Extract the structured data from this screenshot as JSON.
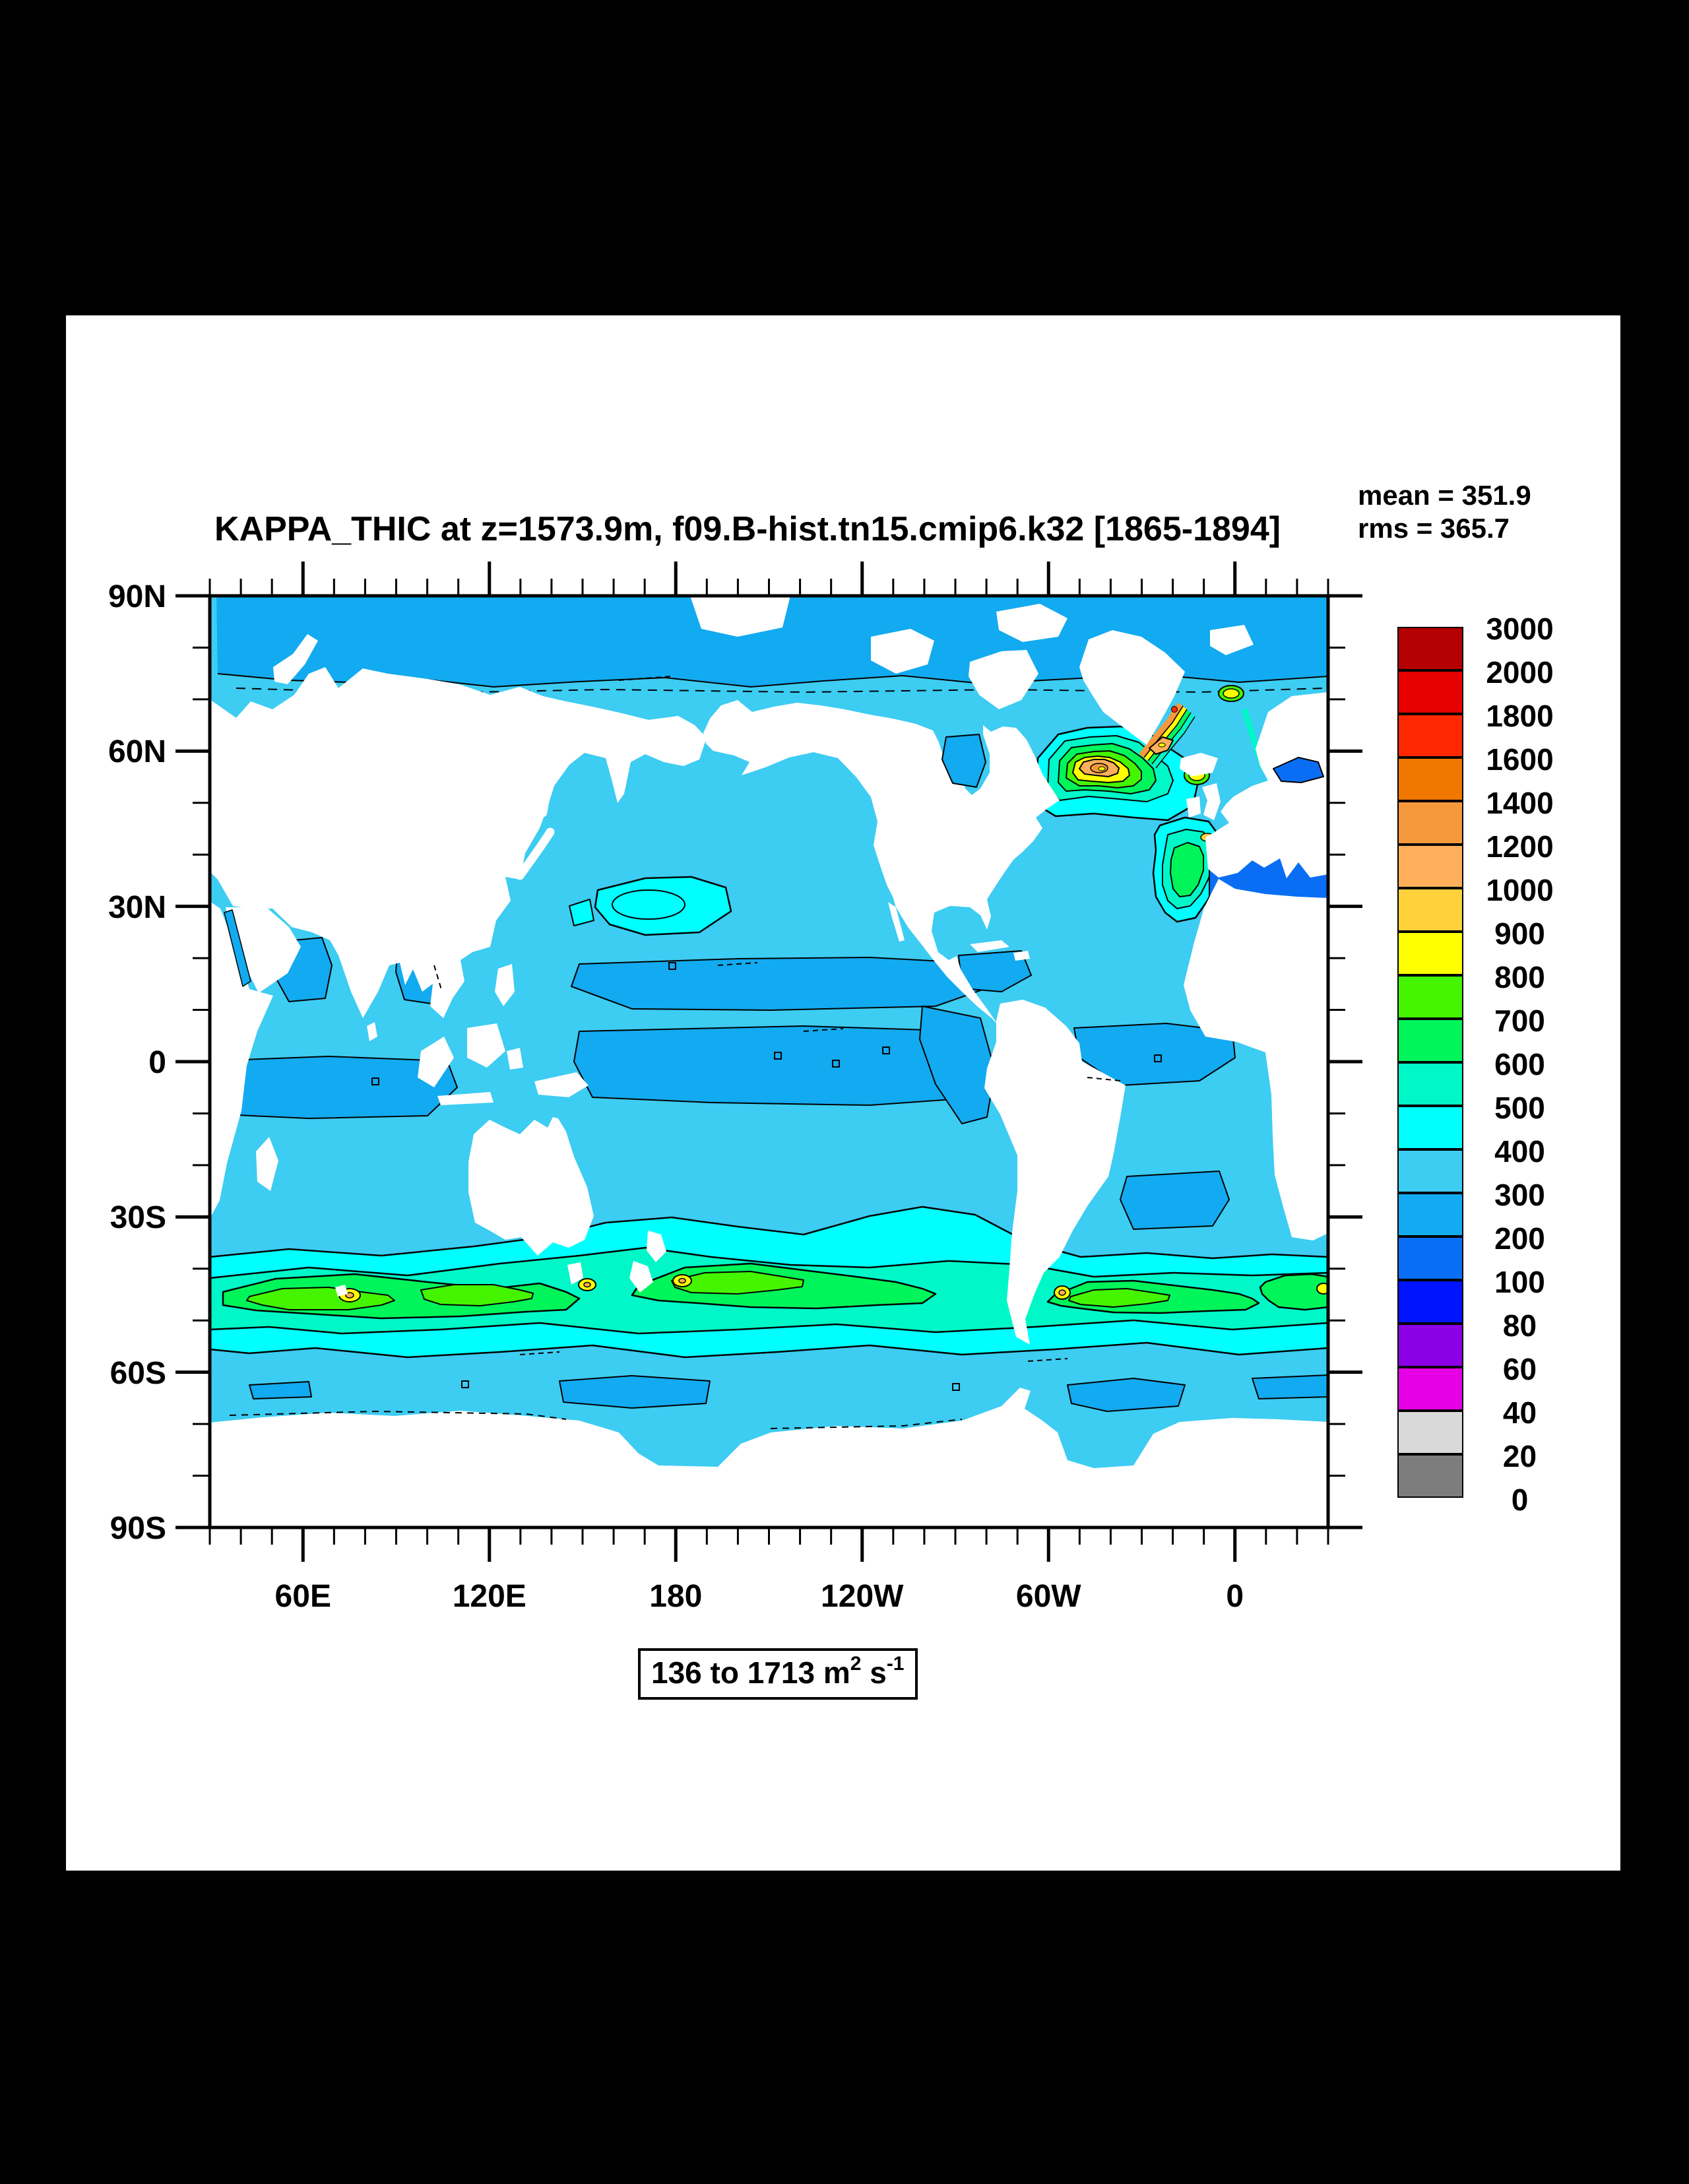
{
  "header": {
    "title": "KAPPA_THIC at z=1573.9m, f09.B-hist.tn15.cmip6.k32 [1865-1894]",
    "mean_label": "mean = 351.9",
    "rms_label": "rms = 365.7"
  },
  "axes": {
    "x_tick_labels": [
      "60E",
      "120E",
      "180",
      "120W",
      "60W",
      "0"
    ],
    "y_tick_labels": [
      "90N",
      "60N",
      "30N",
      "0",
      "30S",
      "60S",
      "90S"
    ]
  },
  "colorbar": {
    "tick_labels": [
      "3000",
      "2000",
      "1800",
      "1600",
      "1400",
      "1200",
      "1000",
      "900",
      "800",
      "700",
      "600",
      "500",
      "400",
      "300",
      "200",
      "100",
      "80",
      "60",
      "40",
      "20",
      "0"
    ],
    "box_colors": [
      "#B40000",
      "#E60000",
      "#FF2800",
      "#F07800",
      "#F5993C",
      "#FFAF5A",
      "#FFD23C",
      "#FFFF00",
      "#45F500",
      "#00F55A",
      "#00F7C8",
      "#00FFFF",
      "#3DCCF2",
      "#12AAF0",
      "#0A6EF5",
      "#0014FF",
      "#8C00E6",
      "#E600E6",
      "#D9D9D9",
      "#7D7D7D"
    ]
  },
  "range_annotation": {
    "text_main": "136 to 1713 m",
    "sup_1": "2",
    "text_mid": " s",
    "sup_2": "-1"
  },
  "chart_data": {
    "type": "heatmap",
    "subtype": "filled-contour world map (lat-lon)",
    "title": "KAPPA_THIC at z=1573.9m, f09.B-hist.tn15.cmip6.k32 [1865-1894]",
    "variable": "KAPPA_THIC",
    "depth": "z=1573.9m",
    "case": "f09.B-hist.tn15.cmip6.k32",
    "period": "1865-1894",
    "mean": 351.9,
    "rms": 365.7,
    "data_range": {
      "min": 136,
      "max": 1713,
      "units": "m2 s-1"
    },
    "x_axis": {
      "label_ticks": [
        "60E",
        "120E",
        "180",
        "120W",
        "60W",
        "0"
      ],
      "range": "30E to 30E (360 deg, minor ticks every 10 deg)"
    },
    "y_axis": {
      "label_ticks": [
        "90N",
        "60N",
        "30N",
        "0",
        "30S",
        "60S",
        "90S"
      ],
      "range": "90N to 90S (minor ticks every 10 deg)"
    },
    "contour_levels": [
      0,
      20,
      40,
      60,
      80,
      100,
      200,
      300,
      400,
      500,
      600,
      700,
      800,
      900,
      1000,
      1200,
      1400,
      1600,
      1800,
      2000,
      3000
    ],
    "palette_top_to_bottom": [
      "#B40000",
      "#E60000",
      "#FF2800",
      "#F07800",
      "#F5993C",
      "#FFAF5A",
      "#FFD23C",
      "#FFFF00",
      "#45F500",
      "#00F55A",
      "#00F7C8",
      "#00FFFF",
      "#3DCCF2",
      "#12AAF0",
      "#0A6EF5",
      "#0014FF",
      "#8C00E6",
      "#E600E6",
      "#D9D9D9",
      "#7D7D7D"
    ],
    "legend_position": "right vertical labelbar",
    "notable_features": [
      "Most mid/low-latitude ocean at 300-400 (light blue)",
      "Arctic Ocean band, tropical bands and near-Antarctic band at 200-300 (blue)",
      "Southern Ocean circumpolar band 400-700 (cyan-teal-green) near 40-55S",
      "Yellow 800-900 hotspots near Kerguelen, south of Tasmania, east of New Zealand, Falkland shelf",
      "Strong Labrador Sea / SE Greenland maximum reaching 1200-1400 (orange) with small red >1600 speck",
      "Green plume west of Iberia; yellow spots near Iceland-Ireland and Norwegian coast",
      "Marginal seas (Mediterranean, Baltic) at 100-200",
      "Land masked in white"
    ],
    "grid": false
  }
}
